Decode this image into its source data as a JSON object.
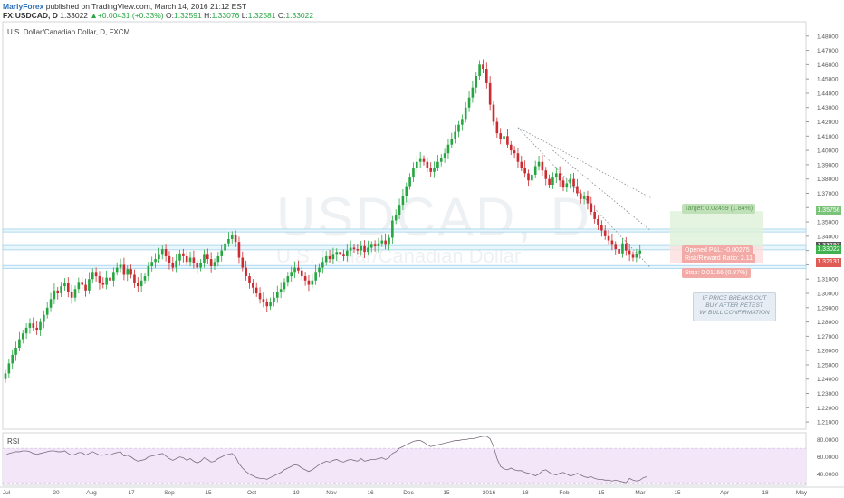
{
  "header": {
    "author": "MarlyForex",
    "published": " published on TradingView.com, March 14, 2016 21:12 EST",
    "symbol": "FX:USDCAD, D",
    "last": "1.33022",
    "change": "+0.00431 (+0.33%)",
    "o_label": "O:",
    "o_value": "1.32591",
    "h_label": "H:",
    "h_value": "1.33076",
    "l_label": "L:",
    "l_value": "1.32581",
    "c_label": "C:",
    "c_value": "1.33022"
  },
  "watermark": {
    "symbol": "USDCAD, D",
    "description": "U.S. Dollar/Canadian Dollar"
  },
  "annotations": {
    "target": "Target: 0.02459 (1.84%)",
    "open_pl": "Opened P&L: -0.00275",
    "risk_reward": "Risk/Reward Ratio: 2.11",
    "stop": "Stop: 0.01166 (0.87%)",
    "comment": [
      "IF PRICE BREAKS OUT",
      "BUY AFTER RETEST",
      "W/ BULL CONFIRMATION"
    ]
  },
  "price_tags": [
    {
      "label": "1.35756",
      "value": 1.35756,
      "color": "#7cc37a"
    },
    {
      "label": "1.33297",
      "value": 1.33297,
      "color": "#555555"
    },
    {
      "label": "1.33022",
      "value": 1.33022,
      "color": "#3fb14e"
    },
    {
      "label": "1.32131",
      "value": 1.32131,
      "color": "#e05b56"
    }
  ],
  "colors": {
    "up": "#26a641",
    "down": "#cc2b30",
    "zone": "#9fd3ec",
    "rsi_band": "#f3e6f9",
    "rsi_line": "#7a6d7e"
  },
  "chart_data": [
    {
      "type": "candlestick",
      "title": "U.S. Dollar/Canadian Dollar, D, FXCM",
      "ylim": [
        1.205,
        1.49
      ],
      "y_ticks": [
        "1.21000",
        "1.22000",
        "1.23000",
        "1.24000",
        "1.25000",
        "1.26000",
        "1.27000",
        "1.28000",
        "1.29000",
        "1.30000",
        "1.31000",
        "1.32000",
        "1.33000",
        "1.34000",
        "1.35000",
        "1.36000",
        "1.37000",
        "1.38000",
        "1.39000",
        "1.40000",
        "1.41000",
        "1.42000",
        "1.43000",
        "1.44000",
        "1.45000",
        "1.46000",
        "1.47000",
        "1.48000"
      ],
      "x_ticks": [
        "Jul",
        "20",
        "Aug",
        "17",
        "Sep",
        "15",
        "Oct",
        "19",
        "Nov",
        "16",
        "Dec",
        "15",
        "2016",
        "18",
        "Feb",
        "15",
        "Mar",
        "15",
        "Apr",
        "18",
        "May"
      ],
      "support_resistance_zones": [
        [
          1.343,
          1.345
        ],
        [
          1.3305,
          1.3335
        ],
        [
          1.3175,
          1.3195
        ]
      ],
      "close_series": [
        1.244,
        1.251,
        1.257,
        1.262,
        1.268,
        1.272,
        1.276,
        1.279,
        1.276,
        1.274,
        1.28,
        1.285,
        1.29,
        1.296,
        1.302,
        1.3,
        1.305,
        1.307,
        1.301,
        1.297,
        1.303,
        1.308,
        1.306,
        1.302,
        1.31,
        1.315,
        1.312,
        1.307,
        1.306,
        1.311,
        1.309,
        1.315,
        1.318,
        1.32,
        1.313,
        1.317,
        1.313,
        1.307,
        1.305,
        1.309,
        1.312,
        1.319,
        1.322,
        1.324,
        1.327,
        1.331,
        1.326,
        1.321,
        1.318,
        1.323,
        1.328,
        1.326,
        1.322,
        1.325,
        1.321,
        1.318,
        1.321,
        1.327,
        1.324,
        1.319,
        1.322,
        1.326,
        1.33,
        1.335,
        1.338,
        1.341,
        1.336,
        1.325,
        1.318,
        1.312,
        1.307,
        1.304,
        1.3,
        1.296,
        1.294,
        1.291,
        1.294,
        1.297,
        1.301,
        1.303,
        1.308,
        1.312,
        1.315,
        1.318,
        1.316,
        1.312,
        1.309,
        1.306,
        1.309,
        1.315,
        1.318,
        1.322,
        1.326,
        1.324,
        1.327,
        1.329,
        1.327,
        1.326,
        1.33,
        1.332,
        1.331,
        1.33,
        1.333,
        1.329,
        1.332,
        1.334,
        1.333,
        1.335,
        1.337,
        1.334,
        1.339,
        1.351,
        1.355,
        1.362,
        1.368,
        1.375,
        1.381,
        1.388,
        1.392,
        1.394,
        1.392,
        1.388,
        1.385,
        1.388,
        1.392,
        1.395,
        1.398,
        1.404,
        1.408,
        1.413,
        1.418,
        1.422,
        1.43,
        1.437,
        1.444,
        1.452,
        1.46,
        1.457,
        1.447,
        1.432,
        1.42,
        1.412,
        1.408,
        1.41,
        1.404,
        1.4,
        1.398,
        1.392,
        1.388,
        1.384,
        1.379,
        1.383,
        1.389,
        1.392,
        1.386,
        1.38,
        1.376,
        1.381,
        1.384,
        1.379,
        1.374,
        1.377,
        1.38,
        1.375,
        1.37,
        1.366,
        1.368,
        1.363,
        1.357,
        1.352,
        1.348,
        1.344,
        1.34,
        1.337,
        1.334,
        1.331,
        1.328,
        1.335,
        1.33,
        1.327,
        1.325,
        1.328,
        1.33
      ],
      "trendlines": [
        {
          "from": [
            147,
            1.416
          ],
          "to": [
            185,
            1.367
          ]
        },
        {
          "from": [
            147,
            1.416
          ],
          "to": [
            185,
            1.318
          ]
        },
        {
          "from": [
            157,
            1.4
          ],
          "to": [
            185,
            1.344
          ]
        }
      ]
    },
    {
      "type": "line",
      "title": "RSI",
      "ylim": [
        27,
        88
      ],
      "y_ticks": [
        "40.0000",
        "60.0000",
        "80.0000"
      ],
      "band": [
        30,
        70
      ],
      "values": [
        62,
        64,
        65,
        66,
        66,
        67,
        67,
        66,
        64,
        63,
        64,
        65,
        66,
        67,
        67,
        66,
        66,
        67,
        64,
        62,
        63,
        65,
        65,
        62,
        64,
        66,
        64,
        62,
        62,
        63,
        62,
        64,
        65,
        66,
        61,
        62,
        60,
        57,
        55,
        56,
        57,
        60,
        61,
        62,
        63,
        64,
        61,
        58,
        56,
        58,
        60,
        59,
        56,
        58,
        55,
        53,
        55,
        59,
        57,
        54,
        55,
        58,
        60,
        62,
        63,
        64,
        60,
        52,
        47,
        43,
        40,
        38,
        36,
        35,
        35,
        34,
        36,
        38,
        40,
        42,
        45,
        47,
        49,
        51,
        50,
        47,
        45,
        43,
        45,
        48,
        51,
        53,
        55,
        54,
        56,
        57,
        55,
        54,
        56,
        57,
        56,
        55,
        58,
        55,
        56,
        57,
        57,
        58,
        59,
        57,
        59,
        64,
        66,
        70,
        72,
        74,
        76,
        78,
        79,
        79,
        77,
        74,
        72,
        73,
        74,
        75,
        76,
        77,
        78,
        79,
        79,
        80,
        80,
        81,
        81,
        82,
        83,
        84,
        84,
        81,
        72,
        58,
        49,
        46,
        45,
        47,
        45,
        44,
        44,
        42,
        41,
        40,
        38,
        40,
        44,
        45,
        42,
        40,
        39,
        41,
        42,
        40,
        38,
        39,
        41,
        39,
        37,
        36,
        37,
        35,
        34,
        34,
        33,
        33,
        32,
        33,
        32,
        31,
        30,
        35,
        33,
        32,
        33,
        36,
        37
      ]
    }
  ]
}
